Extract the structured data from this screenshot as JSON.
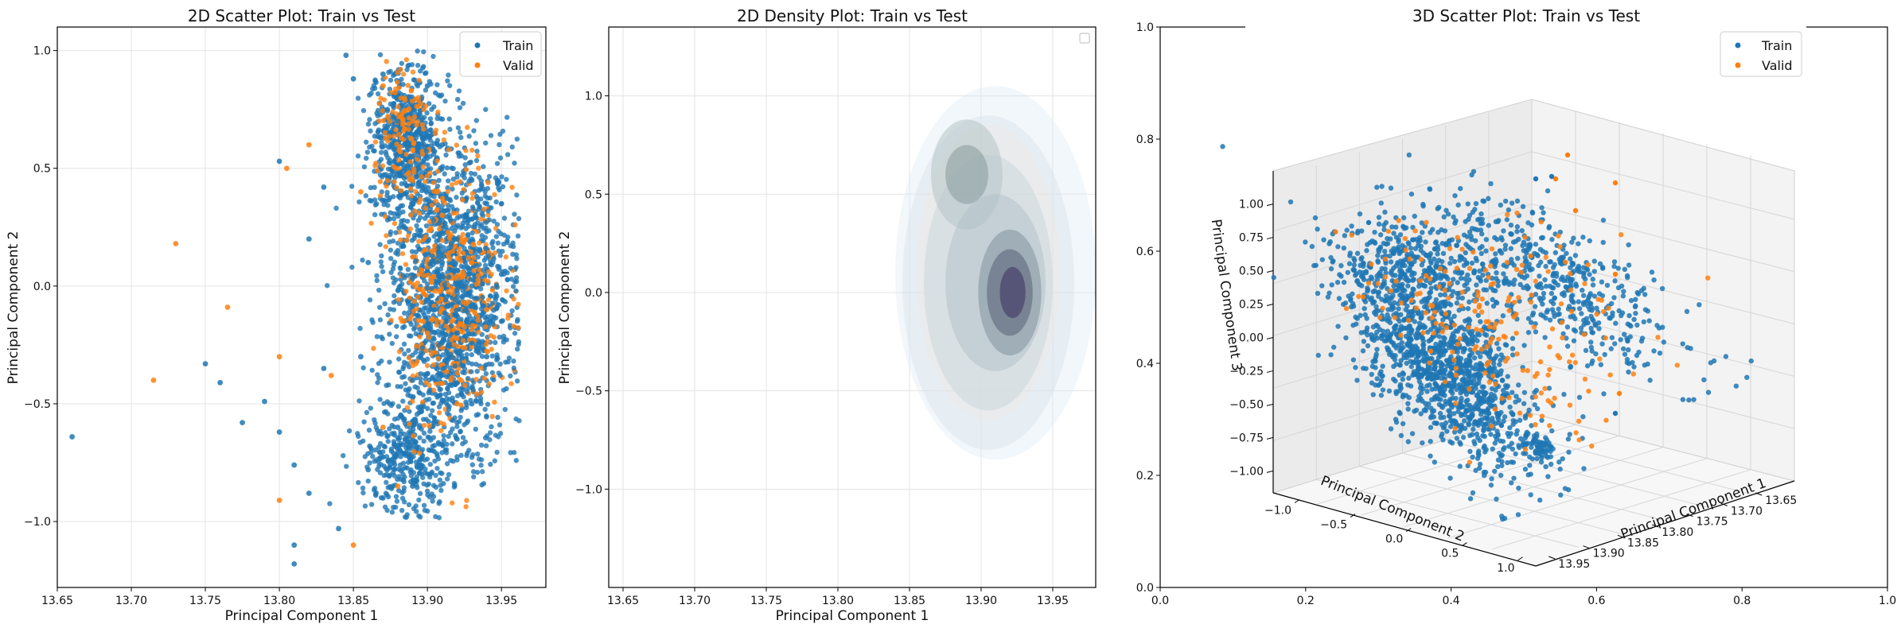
{
  "colors": {
    "train": "#1f77b4",
    "valid": "#ff7f0e"
  },
  "chart_data": [
    {
      "type": "scatter",
      "title": "2D Scatter Plot: Train vs Test",
      "xlabel": "Principal Component 1",
      "ylabel": "Principal Component 2",
      "xlim": [
        13.65,
        13.98
      ],
      "ylim": [
        -1.28,
        1.1
      ],
      "xticks": [
        "13.65",
        "13.70",
        "13.75",
        "13.80",
        "13.85",
        "13.90",
        "13.95"
      ],
      "yticks": [
        "1.0",
        "0.5",
        "0.0",
        "−0.5",
        "−1.0"
      ],
      "grid": true,
      "legend": [
        "Train",
        "Valid"
      ],
      "legend_position": "top-right",
      "series": [
        {
          "name": "Train",
          "color": "#1f77b4",
          "x": [
            13.66,
            13.75,
            13.76,
            13.775,
            13.79,
            13.8,
            13.8,
            13.81,
            13.81,
            13.81,
            13.82,
            13.82,
            13.83,
            13.83,
            13.84,
            13.845,
            13.85,
            13.855,
            13.86,
            13.87,
            13.88,
            13.89,
            13.9,
            13.905,
            13.91,
            13.92,
            13.93,
            13.94,
            13.95,
            13.88,
            13.89,
            13.9,
            13.92,
            13.93,
            13.94,
            13.87,
            13.88,
            13.91,
            13.92,
            13.95,
            13.86,
            13.89,
            13.93
          ],
          "y": [
            -0.64,
            -0.33,
            -0.41,
            -0.58,
            -0.49,
            -0.62,
            0.53,
            -0.76,
            -1.1,
            -1.18,
            0.2,
            -0.88,
            0.42,
            -0.35,
            -1.03,
            0.98,
            0.88,
            -0.3,
            -0.78,
            0.9,
            0.7,
            0.55,
            0.3,
            -0.1,
            0.1,
            -0.2,
            0.0,
            -0.3,
            0.05,
            -0.6,
            -0.85,
            0.85,
            0.2,
            -0.5,
            0.35,
            -0.9,
            0.15,
            0.6,
            -0.65,
            -0.15,
            0.1,
            -0.4,
            0.45
          ]
        },
        {
          "name": "Valid",
          "color": "#ff7f0e",
          "x": [
            13.715,
            13.73,
            13.765,
            13.8,
            13.8,
            13.805,
            13.82,
            13.835,
            13.85,
            13.855,
            13.87,
            13.88,
            13.9,
            13.91,
            13.92,
            13.93,
            13.94,
            13.89,
            13.87
          ],
          "y": [
            -0.4,
            0.18,
            -0.09,
            -0.3,
            -0.91,
            0.5,
            0.6,
            -0.38,
            -1.1,
            0.4,
            0.85,
            -0.85,
            -0.2,
            0.3,
            -0.5,
            0.1,
            -0.1,
            0.7,
            -0.6
          ]
        }
      ]
    },
    {
      "type": "heatmap",
      "title": "2D Density Plot: Train vs Test",
      "xlabel": "Principal Component 1",
      "ylabel": "Principal Component 2",
      "xlim": [
        13.64,
        13.98
      ],
      "ylim": [
        -1.5,
        1.35
      ],
      "xticks": [
        "13.65",
        "13.70",
        "13.75",
        "13.80",
        "13.85",
        "13.90",
        "13.95"
      ],
      "yticks": [
        "1.0",
        "0.5",
        "0.0",
        "−0.5",
        "−1.0"
      ],
      "grid": true,
      "legend": [],
      "legend_position": "top-right",
      "density_centers": [
        {
          "x": 13.92,
          "y": 0.0,
          "weight": 1.0
        },
        {
          "x": 13.89,
          "y": 0.6,
          "weight": 0.6
        }
      ]
    },
    {
      "type": "scatter",
      "title": "3D Scatter Plot: Train vs Test",
      "xlabel": "Principal Component 1",
      "ylabel": "Principal Component 2",
      "zlabel": "Principal Component 3",
      "outer_xlim": [
        0.0,
        1.0
      ],
      "outer_ylim": [
        0.0,
        1.0
      ],
      "outer_xticks": [
        "0.0",
        "0.2",
        "0.4",
        "0.6",
        "0.8",
        "1.0"
      ],
      "outer_yticks": [
        "0.0",
        "0.2",
        "0.4",
        "0.6",
        "0.8",
        "1.0"
      ],
      "pc1_ticks": [
        "13.65",
        "13.70",
        "13.75",
        "13.80",
        "13.85",
        "13.90",
        "13.95"
      ],
      "pc2_ticks": [
        "−1.0",
        "−0.5",
        "0.0",
        "0.5",
        "1.0"
      ],
      "pc3_ticks": [
        "1.00",
        "0.75",
        "0.50",
        "0.25",
        "0.00",
        "−0.25",
        "−0.50",
        "−0.75",
        "−1.00"
      ],
      "legend": [
        "Train",
        "Valid"
      ],
      "legend_position": "top-right"
    }
  ]
}
